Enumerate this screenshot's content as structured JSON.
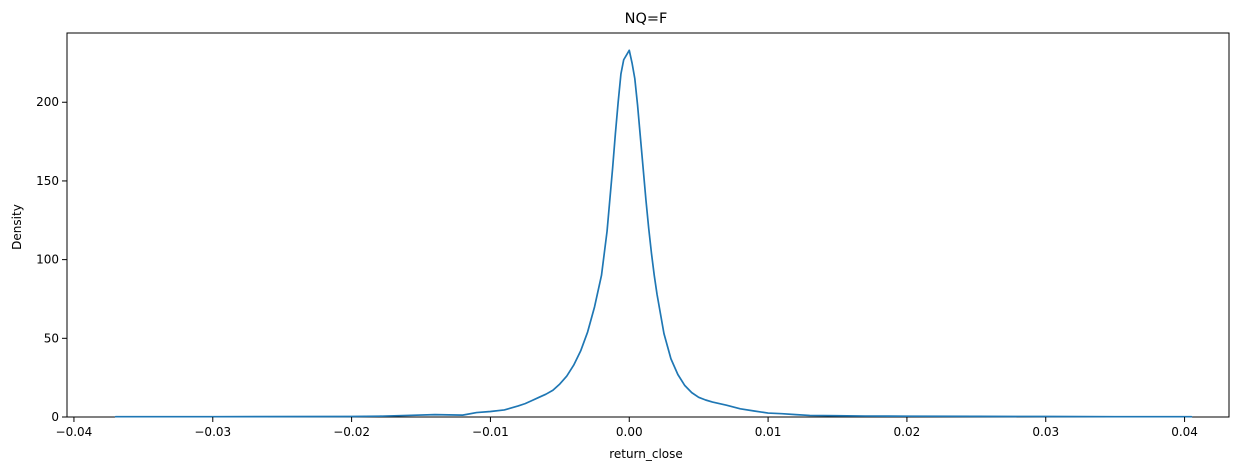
{
  "chart_data": {
    "type": "line",
    "title": "NQ=F",
    "xlabel": "return_close",
    "ylabel": "Density",
    "xlim": [
      -0.0405,
      0.0432
    ],
    "ylim": [
      0,
      244
    ],
    "x_ticks": [
      -0.04,
      -0.03,
      -0.02,
      -0.01,
      0.0,
      0.01,
      0.02,
      0.03,
      0.04
    ],
    "x_tick_labels": [
      "−0.04",
      "−0.03",
      "−0.02",
      "−0.01",
      "0.00",
      "0.01",
      "0.02",
      "0.03",
      "0.04"
    ],
    "y_ticks": [
      0,
      50,
      100,
      150,
      200
    ],
    "y_tick_labels": [
      "0",
      "50",
      "100",
      "150",
      "200"
    ],
    "grid": false,
    "legend": null,
    "series": [
      {
        "color": "#1f77b4",
        "x": [
          -0.037,
          -0.03,
          -0.02,
          -0.018,
          -0.016,
          -0.014,
          -0.012,
          -0.011,
          -0.01,
          -0.009,
          -0.008,
          -0.0075,
          -0.007,
          -0.0065,
          -0.006,
          -0.0055,
          -0.005,
          -0.0045,
          -0.004,
          -0.0035,
          -0.003,
          -0.0025,
          -0.002,
          -0.0018,
          -0.0016,
          -0.0014,
          -0.0012,
          -0.001,
          -0.0008,
          -0.0006,
          -0.0004,
          -0.0002,
          0.0,
          0.0002,
          0.0004,
          0.0006,
          0.0008,
          0.001,
          0.0012,
          0.0014,
          0.0016,
          0.0018,
          0.002,
          0.0025,
          0.003,
          0.0035,
          0.004,
          0.0045,
          0.005,
          0.0055,
          0.006,
          0.007,
          0.008,
          0.009,
          0.01,
          0.011,
          0.012,
          0.013,
          0.015,
          0.017,
          0.02,
          0.025,
          0.03,
          0.035,
          0.0405
        ],
        "y": [
          0.2,
          0.2,
          0.3,
          0.5,
          1.0,
          1.5,
          1.2,
          2.8,
          3.5,
          4.5,
          7.0,
          8.5,
          10.5,
          12.5,
          14.5,
          17.0,
          21.0,
          26.0,
          33.0,
          42.0,
          54.0,
          70.0,
          90.0,
          104.0,
          118.0,
          138.0,
          158.0,
          180.0,
          200.0,
          218.0,
          227.0,
          230.0,
          233.0,
          225.0,
          215.0,
          198.0,
          178.0,
          158.0,
          138.0,
          120.0,
          104.0,
          90.0,
          78.0,
          53.0,
          37.0,
          27.0,
          20.0,
          15.5,
          12.5,
          10.8,
          9.5,
          7.5,
          5.2,
          3.8,
          2.5,
          2.1,
          1.5,
          1.0,
          0.8,
          0.6,
          0.5,
          0.4,
          0.3,
          0.2,
          0.2
        ]
      }
    ]
  }
}
